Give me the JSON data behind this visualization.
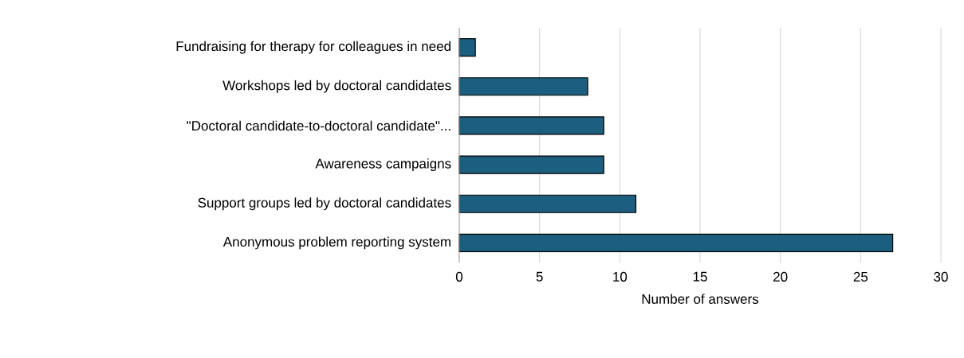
{
  "chart_data": {
    "type": "bar",
    "orientation": "horizontal",
    "xlabel": "Number of answers",
    "categories": [
      "Fundraising for therapy for colleagues in need",
      "Workshops led by doctoral candidates",
      "\"Doctoral candidate-to-doctoral candidate\"...",
      "Awareness campaigns",
      "Support groups led by doctoral candidates",
      "Anonymous problem reporting system"
    ],
    "values": [
      1,
      8,
      9,
      9,
      11,
      27
    ],
    "color": "#1b5e7e",
    "xlim": [
      0,
      30
    ],
    "xticks": [
      0,
      5,
      10,
      15,
      20,
      25,
      30
    ],
    "grid": "x"
  }
}
